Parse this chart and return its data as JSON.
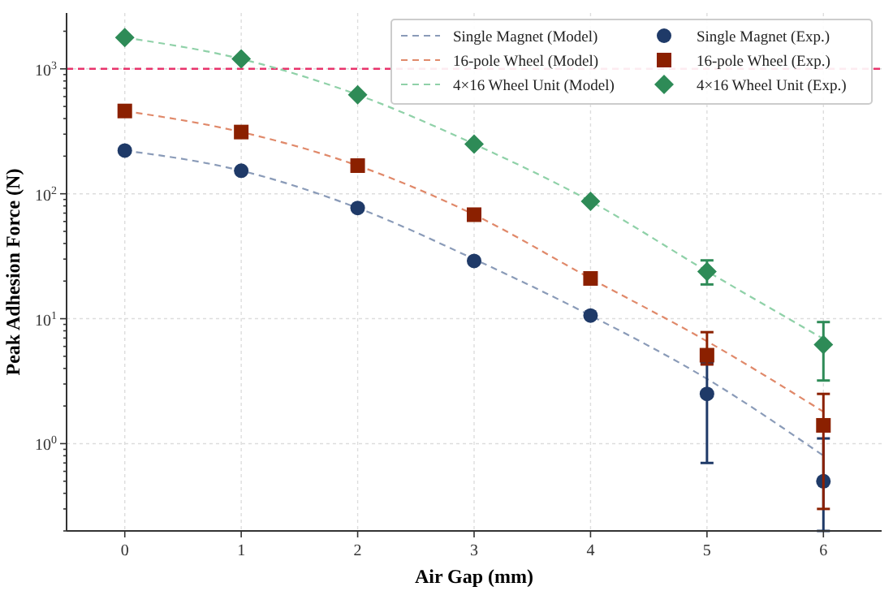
{
  "chart_data": {
    "type": "line",
    "xlabel": "Air Gap (mm)",
    "ylabel": "Peak Adhesion Force (N)",
    "log": "y",
    "grid": true,
    "legend": "top right",
    "x": [
      0,
      1,
      2,
      3,
      4,
      5,
      6
    ],
    "xlim": [
      -0.5,
      6.5
    ],
    "xticks": [
      0,
      1,
      2,
      3,
      4,
      5,
      6
    ],
    "ylim": [
      0.2,
      2800
    ],
    "yticks": [
      {
        "value": 0.2,
        "label": null
      },
      {
        "value": 0.3,
        "label": null
      },
      {
        "value": 0.4,
        "label": null
      },
      {
        "value": 0.5,
        "label": null
      },
      {
        "value": 0.6,
        "label": null
      },
      {
        "value": 0.7,
        "label": null
      },
      {
        "value": 0.8,
        "label": null
      },
      {
        "value": 0.9,
        "label": null
      },
      {
        "value": 1,
        "label": "10$^{0}$"
      },
      {
        "value": 2,
        "label": null
      },
      {
        "value": 3,
        "label": null
      },
      {
        "value": 4,
        "label": null
      },
      {
        "value": 5,
        "label": null
      },
      {
        "value": 6,
        "label": null
      },
      {
        "value": 7,
        "label": null
      },
      {
        "value": 8,
        "label": null
      },
      {
        "value": 9,
        "label": null
      },
      {
        "value": 10,
        "label": "10$^{1}$"
      },
      {
        "value": 20,
        "label": null
      },
      {
        "value": 30,
        "label": null
      },
      {
        "value": 40,
        "label": null
      },
      {
        "value": 50,
        "label": null
      },
      {
        "value": 60,
        "label": null
      },
      {
        "value": 70,
        "label": null
      },
      {
        "value": 80,
        "label": null
      },
      {
        "value": 90,
        "label": null
      },
      {
        "value": 100,
        "label": "10$^{2}$"
      },
      {
        "value": 200,
        "label": null
      },
      {
        "value": 300,
        "label": null
      },
      {
        "value": 400,
        "label": null
      },
      {
        "value": 500,
        "label": null
      },
      {
        "value": 600,
        "label": null
      },
      {
        "value": 700,
        "label": null
      },
      {
        "value": 800,
        "label": null
      },
      {
        "value": 900,
        "label": null
      },
      {
        "value": 1000,
        "label": "10$^{3}$"
      },
      {
        "value": 2000,
        "label": null
      }
    ],
    "ref_lines": [
      {
        "axis": "y",
        "value": 1000,
        "color": "#e8336b",
        "line_style": "dashed"
      }
    ],
    "series": [
      {
        "name": "Single Magnet (Model)",
        "line_style": "dashed",
        "marker": "none",
        "color": "#8a9bb8",
        "values": [
          222,
          153,
          77,
          30,
          10.6,
          3.3,
          0.8
        ]
      },
      {
        "name": "16-pole Wheel (Model)",
        "line_style": "dashed",
        "marker": "none",
        "color": "#e0896a",
        "values": [
          460,
          312,
          168,
          68,
          21,
          6.6,
          1.8
        ]
      },
      {
        "name": "4×16 Wheel Unit (Model)",
        "line_style": "dashed",
        "marker": "none",
        "color": "#8fd1a8",
        "values": [
          1780,
          1200,
          620,
          250,
          87,
          24,
          6.9
        ]
      },
      {
        "name": "Single Magnet (Exp.)",
        "type": "scatter",
        "marker": "circle",
        "color": "#1f3a68",
        "values": [
          222,
          153,
          77,
          29,
          10.6,
          2.5,
          0.5
        ],
        "errors": [
          null,
          null,
          null,
          null,
          null,
          [
            0.7,
            4.4
          ],
          [
            0.2,
            1.1
          ]
        ]
      },
      {
        "name": "16-pole Wheel (Exp.)",
        "type": "scatter",
        "marker": "square",
        "color": "#8b2000",
        "values": [
          460,
          312,
          168,
          68,
          21,
          5.1,
          1.4
        ],
        "errors": [
          null,
          null,
          null,
          null,
          null,
          [
            4.3,
            7.8
          ],
          [
            0.3,
            2.5
          ]
        ]
      },
      {
        "name": "4×16 Wheel Unit (Exp.)",
        "type": "scatter",
        "marker": "diamond",
        "color": "#2e8b57",
        "values": [
          1780,
          1200,
          620,
          250,
          87,
          23.8,
          6.2
        ],
        "errors": [
          null,
          null,
          null,
          null,
          null,
          [
            18.8,
            29.3
          ],
          [
            3.2,
            9.4
          ]
        ]
      }
    ]
  }
}
